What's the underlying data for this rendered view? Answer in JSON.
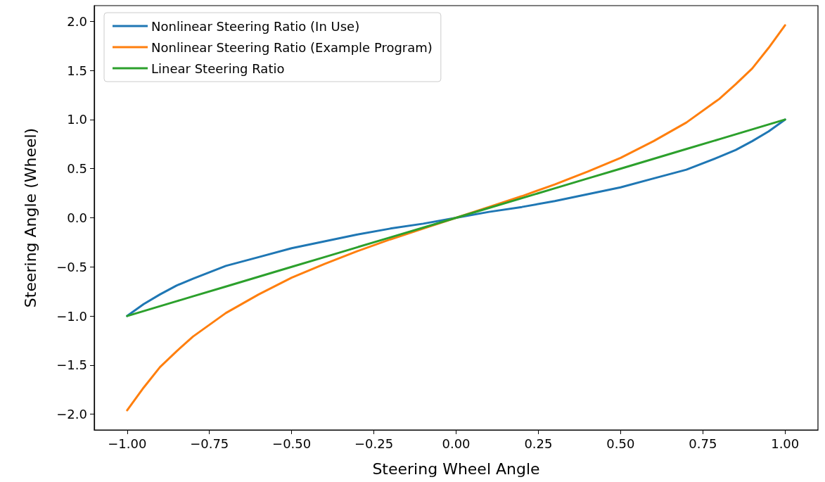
{
  "chart_data": {
    "type": "line",
    "xlabel": "Steering Wheel Angle",
    "ylabel": "Steering Angle (Wheel)",
    "x": [
      -1,
      -0.95,
      -0.9,
      -0.85,
      -0.8,
      -0.7,
      -0.6,
      -0.5,
      -0.4,
      -0.3,
      -0.2,
      -0.1,
      0,
      0.1,
      0.2,
      0.3,
      0.4,
      0.5,
      0.6,
      0.7,
      0.8,
      0.85,
      0.9,
      0.95,
      1
    ],
    "series": [
      {
        "name": "Nonlinear Steering Ratio (In Use)",
        "color": "#1f77b4",
        "values": [
          -1,
          -0.88,
          -0.78,
          -0.69,
          -0.62,
          -0.49,
          -0.4,
          -0.31,
          -0.24,
          -0.17,
          -0.11,
          -0.06,
          0,
          0.06,
          0.11,
          0.17,
          0.24,
          0.31,
          0.4,
          0.49,
          0.62,
          0.69,
          0.78,
          0.88,
          1
        ]
      },
      {
        "name": "Nonlinear Steering Ratio (Example Program)",
        "color": "#ff7f0e",
        "values": [
          -1.96,
          -1.73,
          -1.52,
          -1.36,
          -1.21,
          -0.97,
          -0.78,
          -0.61,
          -0.47,
          -0.34,
          -0.22,
          -0.11,
          0,
          0.11,
          0.22,
          0.34,
          0.47,
          0.61,
          0.78,
          0.97,
          1.21,
          1.36,
          1.52,
          1.73,
          1.96
        ]
      },
      {
        "name": "Linear Steering Ratio",
        "color": "#2ca02c",
        "values": [
          -1,
          -0.95,
          -0.9,
          -0.85,
          -0.8,
          -0.7,
          -0.6,
          -0.5,
          -0.4,
          -0.3,
          -0.2,
          -0.1,
          0,
          0.1,
          0.2,
          0.3,
          0.4,
          0.5,
          0.6,
          0.7,
          0.8,
          0.85,
          0.9,
          0.95,
          1
        ]
      }
    ],
    "xlim": [
      -1.1,
      1.1
    ],
    "ylim": [
      -2.16,
      2.16
    ],
    "xticks": [
      {
        "value": -1,
        "label": "−1.00"
      },
      {
        "value": -0.75,
        "label": "−0.75"
      },
      {
        "value": -0.5,
        "label": "−0.50"
      },
      {
        "value": -0.25,
        "label": "−0.25"
      },
      {
        "value": 0,
        "label": "0.00"
      },
      {
        "value": 0.25,
        "label": "0.25"
      },
      {
        "value": 0.5,
        "label": "0.50"
      },
      {
        "value": 0.75,
        "label": "0.75"
      },
      {
        "value": 1,
        "label": "1.00"
      }
    ],
    "yticks": [
      {
        "value": -2,
        "label": "−2.0"
      },
      {
        "value": -1.5,
        "label": "−1.5"
      },
      {
        "value": -1,
        "label": "−1.0"
      },
      {
        "value": -0.5,
        "label": "−0.5"
      },
      {
        "value": 0,
        "label": "0.0"
      },
      {
        "value": 0.5,
        "label": "0.5"
      },
      {
        "value": 1,
        "label": "1.0"
      },
      {
        "value": 1.5,
        "label": "1.5"
      },
      {
        "value": 2,
        "label": "2.0"
      }
    ],
    "grid": false,
    "legend": "top left",
    "marker": "none",
    "line_style": "solid"
  }
}
